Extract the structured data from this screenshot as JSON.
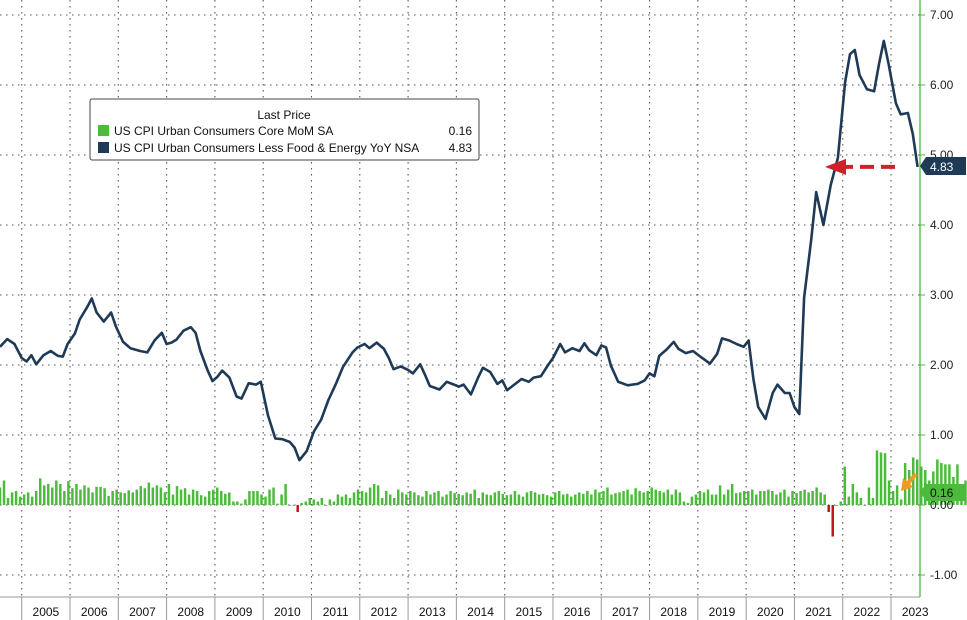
{
  "chart_data": {
    "type": "line",
    "legend": {
      "title": "Last Price",
      "position": "upper-left",
      "entries": [
        {
          "label": "US CPI Urban Consumers Core MoM SA",
          "value": "0.16",
          "color": "#4cbb3c"
        },
        {
          "label": "US CPI Urban Consumers Less Food & Energy YoY NSA",
          "value": "4.83",
          "color": "#1f3a56"
        }
      ]
    },
    "x_ticks": [
      "2005",
      "2006",
      "2007",
      "2008",
      "2009",
      "2010",
      "2011",
      "2012",
      "2013",
      "2014",
      "2015",
      "2016",
      "2017",
      "2018",
      "2019",
      "2020",
      "2021",
      "2022",
      "2023"
    ],
    "y_ticks": [
      "-1.00",
      "0.00",
      "1.00",
      "2.00",
      "3.00",
      "4.00",
      "5.00",
      "6.00",
      "7.00"
    ],
    "ylim": [
      -1.0,
      7.0
    ],
    "xlim": [
      2004.55,
      2023.6
    ],
    "grid": true,
    "y_axis_position": "right",
    "series": [
      {
        "name": "US CPI Urban Consumers Less Food & Energy YoY NSA",
        "kind": "line",
        "color": "#1f3a56",
        "points": [
          [
            2004.55,
            2.26
          ],
          [
            2004.7,
            2.37
          ],
          [
            2004.85,
            2.3
          ],
          [
            2005.0,
            2.1
          ],
          [
            2005.1,
            2.05
          ],
          [
            2005.2,
            2.14
          ],
          [
            2005.3,
            2.01
          ],
          [
            2005.45,
            2.14
          ],
          [
            2005.6,
            2.2
          ],
          [
            2005.75,
            2.13
          ],
          [
            2005.85,
            2.12
          ],
          [
            2005.95,
            2.3
          ],
          [
            2006.1,
            2.45
          ],
          [
            2006.2,
            2.65
          ],
          [
            2006.35,
            2.82
          ],
          [
            2006.45,
            2.95
          ],
          [
            2006.55,
            2.75
          ],
          [
            2006.7,
            2.62
          ],
          [
            2006.85,
            2.75
          ],
          [
            2006.95,
            2.55
          ],
          [
            2007.1,
            2.33
          ],
          [
            2007.25,
            2.24
          ],
          [
            2007.45,
            2.2
          ],
          [
            2007.6,
            2.18
          ],
          [
            2007.75,
            2.35
          ],
          [
            2007.9,
            2.46
          ],
          [
            2008.0,
            2.3
          ],
          [
            2008.1,
            2.32
          ],
          [
            2008.2,
            2.36
          ],
          [
            2008.35,
            2.49
          ],
          [
            2008.5,
            2.54
          ],
          [
            2008.6,
            2.46
          ],
          [
            2008.7,
            2.2
          ],
          [
            2008.85,
            1.92
          ],
          [
            2008.95,
            1.77
          ],
          [
            2009.05,
            1.83
          ],
          [
            2009.15,
            1.92
          ],
          [
            2009.3,
            1.82
          ],
          [
            2009.45,
            1.55
          ],
          [
            2009.55,
            1.52
          ],
          [
            2009.7,
            1.74
          ],
          [
            2009.85,
            1.72
          ],
          [
            2009.95,
            1.76
          ],
          [
            2010.1,
            1.28
          ],
          [
            2010.25,
            0.95
          ],
          [
            2010.4,
            0.94
          ],
          [
            2010.55,
            0.9
          ],
          [
            2010.65,
            0.82
          ],
          [
            2010.75,
            0.64
          ],
          [
            2010.9,
            0.77
          ],
          [
            2011.05,
            1.05
          ],
          [
            2011.2,
            1.22
          ],
          [
            2011.35,
            1.5
          ],
          [
            2011.5,
            1.72
          ],
          [
            2011.65,
            1.97
          ],
          [
            2011.85,
            2.18
          ],
          [
            2011.95,
            2.25
          ],
          [
            2012.1,
            2.3
          ],
          [
            2012.2,
            2.24
          ],
          [
            2012.35,
            2.32
          ],
          [
            2012.5,
            2.23
          ],
          [
            2012.6,
            2.1
          ],
          [
            2012.7,
            1.94
          ],
          [
            2012.85,
            1.98
          ],
          [
            2013.0,
            1.93
          ],
          [
            2013.1,
            1.88
          ],
          [
            2013.25,
            2.01
          ],
          [
            2013.35,
            1.86
          ],
          [
            2013.45,
            1.7
          ],
          [
            2013.65,
            1.65
          ],
          [
            2013.8,
            1.76
          ],
          [
            2013.95,
            1.72
          ],
          [
            2014.05,
            1.69
          ],
          [
            2014.15,
            1.72
          ],
          [
            2014.3,
            1.58
          ],
          [
            2014.45,
            1.82
          ],
          [
            2014.55,
            1.96
          ],
          [
            2014.7,
            1.9
          ],
          [
            2014.85,
            1.73
          ],
          [
            2014.95,
            1.78
          ],
          [
            2015.05,
            1.64
          ],
          [
            2015.2,
            1.72
          ],
          [
            2015.35,
            1.8
          ],
          [
            2015.5,
            1.76
          ],
          [
            2015.6,
            1.82
          ],
          [
            2015.75,
            1.84
          ],
          [
            2015.9,
            2.0
          ],
          [
            2016.0,
            2.1
          ],
          [
            2016.15,
            2.3
          ],
          [
            2016.25,
            2.18
          ],
          [
            2016.4,
            2.24
          ],
          [
            2016.55,
            2.2
          ],
          [
            2016.65,
            2.31
          ],
          [
            2016.75,
            2.21
          ],
          [
            2016.9,
            2.14
          ],
          [
            2017.0,
            2.28
          ],
          [
            2017.1,
            2.25
          ],
          [
            2017.2,
            1.99
          ],
          [
            2017.35,
            1.76
          ],
          [
            2017.55,
            1.71
          ],
          [
            2017.75,
            1.73
          ],
          [
            2017.9,
            1.78
          ],
          [
            2018.0,
            1.88
          ],
          [
            2018.1,
            1.84
          ],
          [
            2018.2,
            2.13
          ],
          [
            2018.35,
            2.22
          ],
          [
            2018.5,
            2.33
          ],
          [
            2018.6,
            2.23
          ],
          [
            2018.75,
            2.17
          ],
          [
            2018.9,
            2.2
          ],
          [
            2019.05,
            2.12
          ],
          [
            2019.25,
            2.02
          ],
          [
            2019.4,
            2.16
          ],
          [
            2019.5,
            2.38
          ],
          [
            2019.65,
            2.35
          ],
          [
            2019.8,
            2.3
          ],
          [
            2019.95,
            2.26
          ],
          [
            2020.05,
            2.35
          ],
          [
            2020.15,
            1.8
          ],
          [
            2020.25,
            1.4
          ],
          [
            2020.4,
            1.23
          ],
          [
            2020.55,
            1.6
          ],
          [
            2020.65,
            1.72
          ],
          [
            2020.8,
            1.6
          ],
          [
            2020.9,
            1.6
          ],
          [
            2021.0,
            1.4
          ],
          [
            2021.1,
            1.3
          ],
          [
            2021.2,
            2.96
          ],
          [
            2021.35,
            3.8
          ],
          [
            2021.45,
            4.47
          ],
          [
            2021.6,
            4.0
          ],
          [
            2021.75,
            4.57
          ],
          [
            2021.9,
            4.96
          ],
          [
            2022.05,
            6.04
          ],
          [
            2022.15,
            6.44
          ],
          [
            2022.25,
            6.5
          ],
          [
            2022.35,
            6.14
          ],
          [
            2022.5,
            5.94
          ],
          [
            2022.65,
            5.91
          ],
          [
            2022.75,
            6.3
          ],
          [
            2022.85,
            6.63
          ],
          [
            2022.95,
            6.3
          ],
          [
            2023.1,
            5.74
          ],
          [
            2023.2,
            5.58
          ],
          [
            2023.35,
            5.6
          ],
          [
            2023.45,
            5.3
          ],
          [
            2023.55,
            4.83
          ]
        ]
      },
      {
        "name": "US CPI Urban Consumers Core MoM SA",
        "kind": "bar",
        "colors": {
          "positive": "#4cbb3c",
          "negative": "#c0141c"
        },
        "x_start": 2004.55,
        "x_step": 0.0833,
        "values": [
          0.25,
          0.35,
          0.1,
          0.18,
          0.2,
          0.12,
          0.15,
          0.18,
          0.12,
          0.2,
          0.38,
          0.28,
          0.3,
          0.25,
          0.35,
          0.3,
          0.2,
          0.34,
          0.24,
          0.3,
          0.22,
          0.28,
          0.25,
          0.18,
          0.26,
          0.26,
          0.24,
          0.13,
          0.2,
          0.22,
          0.18,
          0.17,
          0.21,
          0.18,
          0.22,
          0.27,
          0.24,
          0.32,
          0.25,
          0.28,
          0.25,
          0.18,
          0.3,
          0.15,
          0.27,
          0.22,
          0.24,
          0.15,
          0.22,
          0.2,
          0.14,
          0.12,
          0.2,
          0.22,
          0.25,
          0.2,
          0.16,
          0.18,
          0.05,
          0.05,
          0.02,
          0.08,
          0.2,
          0.2,
          0.2,
          0.15,
          0.12,
          0.22,
          0.25,
          0.02,
          0.15,
          0.3,
          0.0,
          0.0,
          -0.1,
          0.03,
          0.05,
          0.1,
          0.08,
          0.05,
          0.1,
          0.0,
          0.08,
          0.05,
          0.15,
          0.12,
          0.15,
          0.1,
          0.18,
          0.22,
          0.2,
          0.18,
          0.25,
          0.3,
          0.28,
          0.1,
          0.2,
          0.15,
          0.1,
          0.22,
          0.18,
          0.15,
          0.2,
          0.18,
          0.14,
          0.12,
          0.2,
          0.15,
          0.18,
          0.2,
          0.12,
          0.15,
          0.2,
          0.17,
          0.16,
          0.14,
          0.18,
          0.16,
          0.22,
          0.1,
          0.18,
          0.15,
          0.14,
          0.18,
          0.2,
          0.16,
          0.14,
          0.15,
          0.2,
          0.15,
          0.12,
          0.18,
          0.2,
          0.18,
          0.15,
          0.16,
          0.14,
          0.12,
          0.18,
          0.2,
          0.15,
          0.16,
          0.12,
          0.15,
          0.18,
          0.16,
          0.2,
          0.15,
          0.22,
          0.18,
          0.2,
          0.25,
          0.15,
          0.17,
          0.18,
          0.2,
          0.22,
          0.15,
          0.24,
          0.2,
          0.18,
          0.2,
          0.25,
          0.22,
          0.2,
          0.18,
          0.22,
          0.15,
          0.22,
          0.18,
          0.05,
          0.03,
          0.12,
          0.15,
          0.2,
          0.18,
          0.22,
          0.15,
          0.15,
          0.28,
          0.15,
          0.22,
          0.3,
          0.17,
          0.18,
          0.2,
          0.2,
          0.22,
          0.15,
          0.2,
          0.2,
          0.22,
          0.2,
          0.15,
          0.18,
          0.22,
          0.12,
          0.2,
          0.17,
          0.2,
          0.22,
          0.18,
          0.2,
          0.25,
          0.18,
          0.15,
          -0.1,
          -0.45,
          0.0,
          0.05,
          0.55,
          0.12,
          0.3,
          0.18,
          0.1,
          0.0,
          0.25,
          0.1,
          0.78,
          0.75,
          0.74,
          0.35,
          0.2,
          0.28,
          0.08,
          0.6,
          0.5,
          0.68,
          0.65,
          0.55,
          0.5,
          0.35,
          0.48,
          0.65,
          0.6,
          0.58,
          0.58,
          0.4,
          0.58,
          0.28,
          0.35,
          0.42,
          0.38,
          0.4,
          0.45,
          0.38,
          0.4,
          0.16
        ]
      }
    ],
    "annotations": [
      {
        "type": "arrow",
        "style": "dashed",
        "color": "#d0202a",
        "direction": "left",
        "y": 4.83
      },
      {
        "type": "arrow",
        "style": "solid",
        "color": "#f39a1e",
        "direction": "down-left",
        "y": 0.16
      }
    ],
    "last_value_tags": [
      {
        "label": "4.83",
        "y": 4.83,
        "color": "#1f3a56"
      },
      {
        "label": "0.16",
        "y": 0.16,
        "color": "#4cbb3c"
      }
    ]
  }
}
